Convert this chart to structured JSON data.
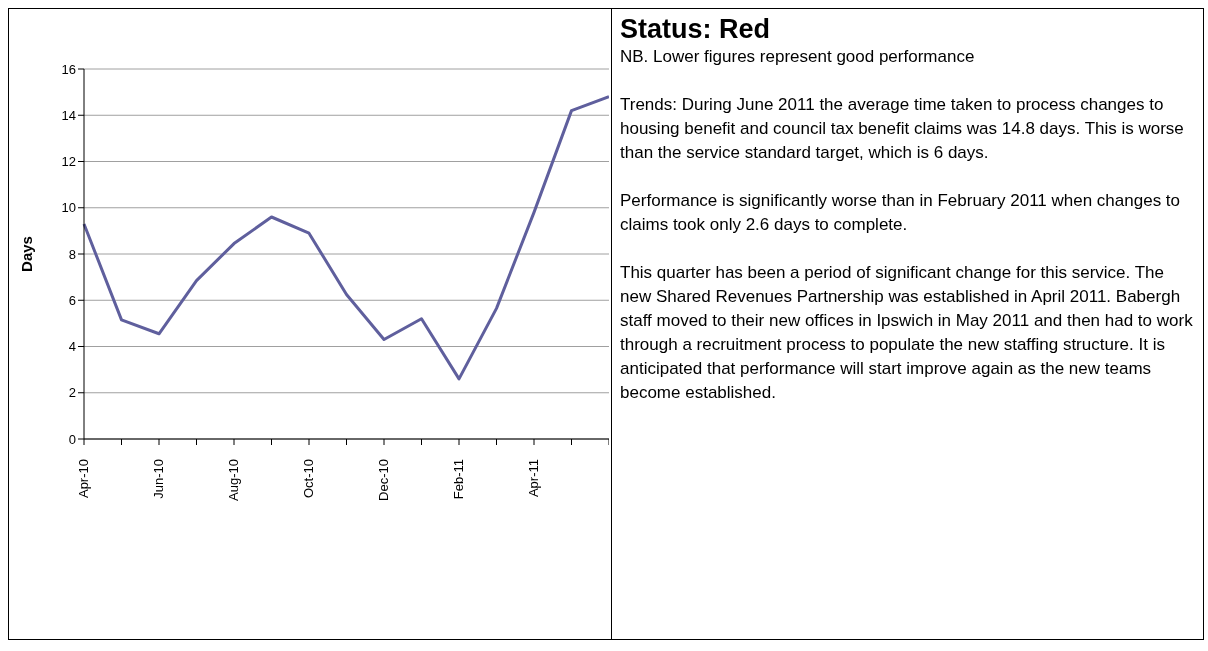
{
  "chart_data": [
    {
      "type": "line",
      "ylabel": "Days",
      "categories": [
        "Apr-10",
        null,
        "Jun-10",
        null,
        "Aug-10",
        null,
        "Oct-10",
        null,
        "Dec-10",
        null,
        "Feb-11",
        null,
        "Apr-11",
        null,
        null
      ],
      "series": [
        {
          "color": "#5f5f9d",
          "values": [
            9.3,
            5.15,
            4.55,
            6.85,
            8.45,
            9.6,
            8.9,
            6.25,
            4.3,
            5.2,
            2.6,
            5.65,
            9.8,
            14.2,
            14.8
          ]
        }
      ],
      "ylim": [
        0,
        16
      ],
      "yticks": [
        0,
        2,
        4,
        6,
        8,
        10,
        12,
        14,
        16
      ],
      "grid": "y",
      "marker": "none",
      "line_style": "solid"
    },
    {
      "type": "other",
      "title": "Status: Red",
      "annotations": [
        "NB. Lower figures represent good performance",
        "Trends:  During June 2011 the average time taken to process changes to housing benefit and council tax benefit claims was 14.8 days. This is worse than the service standard target, which is 6 days.",
        "Performance is significantly worse than in February 2011 when changes to claims took only 2.6 days to complete.",
        "This quarter has been a period of significant change for this service. The new Shared Revenues Partnership was established in April 2011. Babergh staff moved to their new offices in Ipswich in May 2011 and then had to work through a recruitment process to populate the new staffing structure. It is anticipated that performance will start improve again as the new teams become established."
      ]
    }
  ]
}
